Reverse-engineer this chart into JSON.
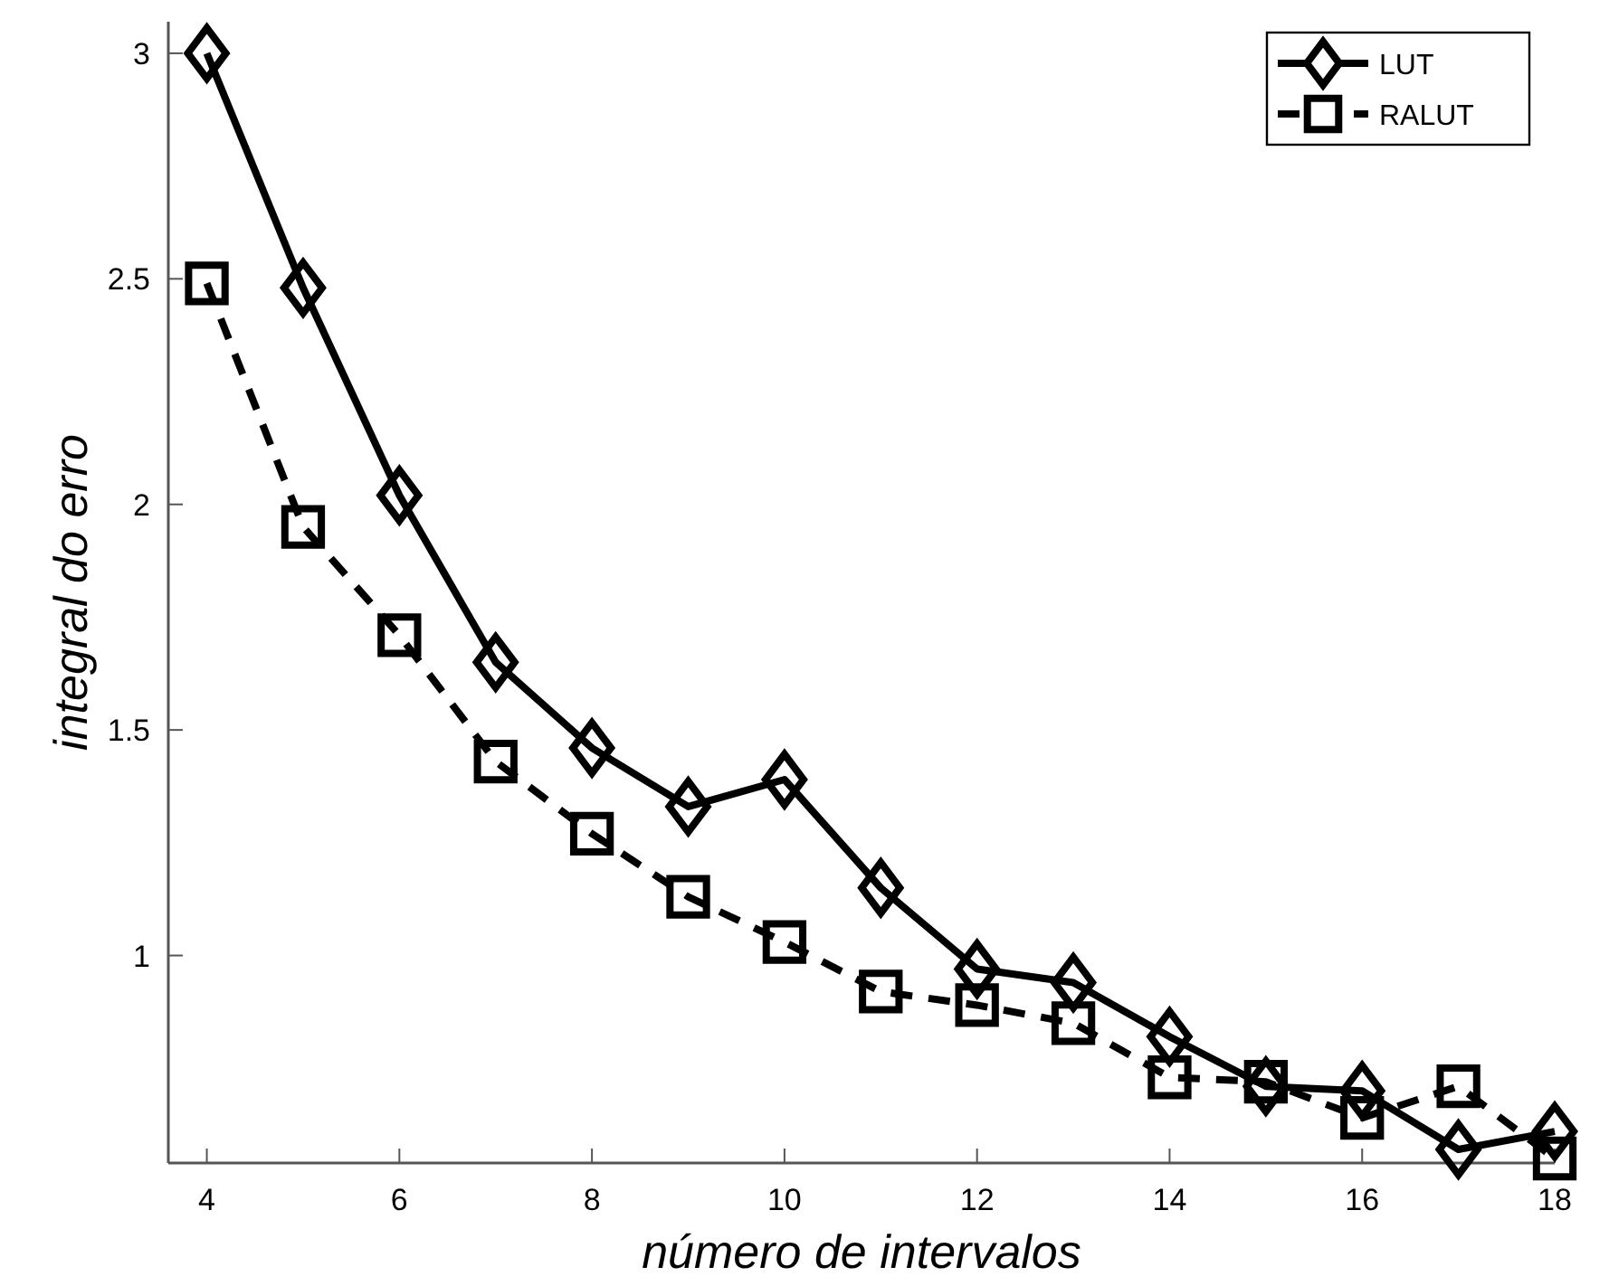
{
  "chart_data": {
    "type": "line",
    "xlabel": "número de intervalos",
    "ylabel": "integral do erro",
    "x": [
      4,
      5,
      6,
      7,
      8,
      9,
      10,
      11,
      12,
      13,
      14,
      15,
      16,
      17,
      18
    ],
    "series": [
      {
        "name": "LUT",
        "color": "#000000",
        "marker": "diamond",
        "line_style": "solid",
        "values": [
          3.0,
          2.48,
          2.02,
          1.65,
          1.46,
          1.33,
          1.39,
          1.15,
          0.97,
          0.94,
          0.82,
          0.71,
          0.7,
          0.57,
          0.61
        ]
      },
      {
        "name": "RALUT",
        "color": "#000000",
        "marker": "square",
        "line_style": "dashed",
        "values": [
          2.49,
          1.95,
          1.71,
          1.43,
          1.27,
          1.13,
          1.03,
          0.92,
          0.89,
          0.85,
          0.73,
          0.72,
          0.64,
          0.71,
          0.55
        ]
      }
    ],
    "xlim": [
      3.6,
      18
    ],
    "ylim": [
      0.54,
      3.07
    ],
    "xticks": [
      4,
      6,
      8,
      10,
      12,
      14,
      16,
      18
    ],
    "yticks": [
      1,
      1.5,
      2,
      2.5,
      3
    ],
    "grid": false,
    "legend": "top right"
  }
}
